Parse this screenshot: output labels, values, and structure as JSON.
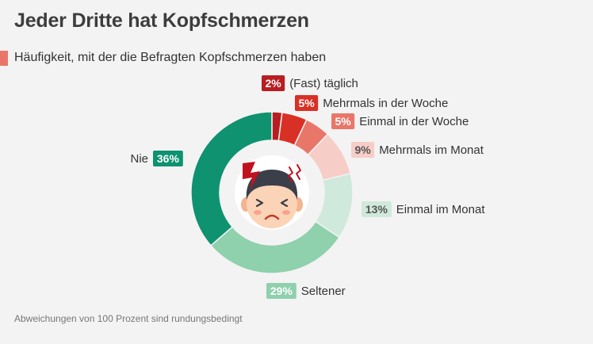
{
  "title": "Jeder Dritte hat Kopfschmerzen",
  "subtitle": "Häufigkeit, mit der die Befragten Kopfschmerzen haben",
  "footnote": "Abweichungen von 100 Prozent sind rundungsbedingt",
  "chart_data": {
    "type": "pie",
    "donut": true,
    "center_icon": "headache-face-icon",
    "slices": [
      {
        "label": "(Fast) täglich",
        "value": 2,
        "value_label": "2%",
        "color": "#b81d22",
        "text_color": "#ffffff"
      },
      {
        "label": "Mehrmals in der Woche",
        "value": 5,
        "value_label": "5%",
        "color": "#d93025",
        "text_color": "#ffffff"
      },
      {
        "label": "Einmal in der Woche",
        "value": 5,
        "value_label": "5%",
        "color": "#e8776a",
        "text_color": "#ffffff"
      },
      {
        "label": "Mehrmals im Monat",
        "value": 9,
        "value_label": "9%",
        "color": "#f7cdc8",
        "text_color": "#555555"
      },
      {
        "label": "Einmal im Monat",
        "value": 13,
        "value_label": "13%",
        "color": "#cfe9dc",
        "text_color": "#555555"
      },
      {
        "label": "Seltener",
        "value": 29,
        "value_label": "29%",
        "color": "#8fd0ad",
        "text_color": "#ffffff"
      },
      {
        "label": "Nie",
        "value": 36,
        "value_label": "36%",
        "color": "#0e9270",
        "text_color": "#ffffff"
      }
    ]
  }
}
